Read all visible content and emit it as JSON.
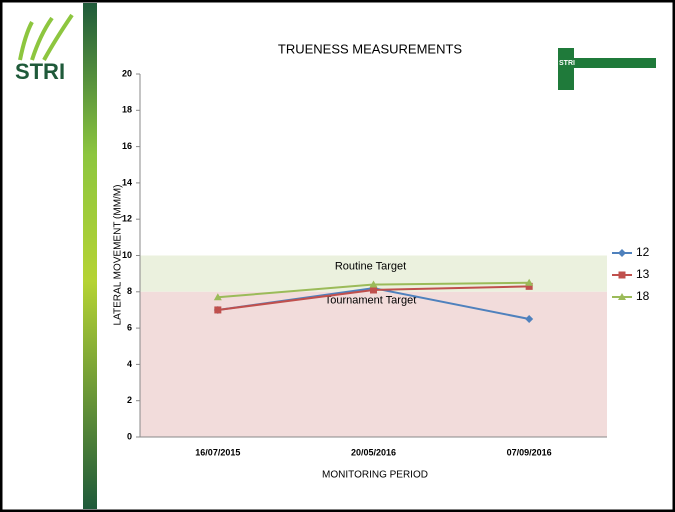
{
  "logo_text": "STRI",
  "chart_data": {
    "type": "line",
    "title": "TRUENESS MEASUREMENTS",
    "xlabel": "MONITORING PERIOD",
    "ylabel": "LATERAL MOVEMENT (MM/M)",
    "categories": [
      "16/07/2015",
      "20/05/2016",
      "07/09/2016"
    ],
    "series": [
      {
        "name": "12",
        "color": "#4f81bd",
        "marker": "diamond",
        "values": [
          7.0,
          8.2,
          6.5
        ]
      },
      {
        "name": "13",
        "color": "#c0504d",
        "marker": "square",
        "values": [
          7.0,
          8.1,
          8.3
        ]
      },
      {
        "name": "18",
        "color": "#9bbb59",
        "marker": "triangle",
        "values": [
          7.7,
          8.4,
          8.5
        ]
      }
    ],
    "bands": [
      {
        "label": "Routine Target",
        "from": 8,
        "to": 10,
        "color": "#ebf1de"
      },
      {
        "label": "Tournament Target",
        "from": 0,
        "to": 8,
        "color": "#f2dcdb"
      }
    ],
    "ylim": [
      0,
      20
    ],
    "yticks": [
      0,
      2,
      4,
      6,
      8,
      10,
      12,
      14,
      16,
      18,
      20
    ],
    "legend": "right"
  }
}
